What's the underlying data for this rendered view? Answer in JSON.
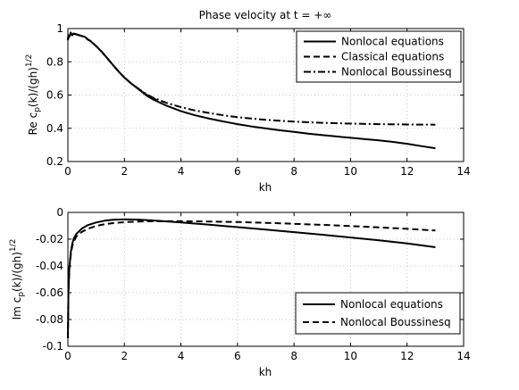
{
  "chart_data": [
    {
      "type": "line",
      "title": "Phase velocity at t = +∞",
      "xlabel": "kh",
      "ylabel": "Re c_p(k)/(gh)^1/2",
      "xlim": [
        0,
        14
      ],
      "ylim": [
        0.2,
        1.0
      ],
      "xticks": [
        "0",
        "2",
        "4",
        "6",
        "8",
        "10",
        "12",
        "14"
      ],
      "yticks": [
        "0.2",
        "0.4",
        "0.6",
        "0.8",
        "1"
      ],
      "grid": true,
      "legend": "top-right",
      "series": [
        {
          "name": "Nonlocal equations",
          "style": "solid",
          "x": [
            0.0,
            0.02,
            0.05,
            0.1,
            0.15,
            0.2,
            0.3,
            0.4,
            0.5,
            0.6,
            0.7,
            0.8,
            1.0,
            1.2,
            1.4,
            1.6,
            1.8,
            2.0,
            2.2,
            2.5,
            2.8,
            3.0,
            3.5,
            4.0,
            4.5,
            5.0,
            5.5,
            6.0,
            6.5,
            7.0,
            7.5,
            8.0,
            8.5,
            9.0,
            9.5,
            10.0,
            10.5,
            11.0,
            11.5,
            12.0,
            12.5,
            13.0
          ],
          "y": [
            0.93,
            0.96,
            0.95,
            0.975,
            0.96,
            0.97,
            0.965,
            0.96,
            0.955,
            0.95,
            0.935,
            0.925,
            0.895,
            0.86,
            0.82,
            0.78,
            0.74,
            0.705,
            0.675,
            0.635,
            0.595,
            0.575,
            0.535,
            0.503,
            0.478,
            0.458,
            0.441,
            0.425,
            0.411,
            0.399,
            0.388,
            0.378,
            0.368,
            0.359,
            0.351,
            0.343,
            0.335,
            0.327,
            0.318,
            0.307,
            0.293,
            0.28
          ]
        },
        {
          "name": "Classical equations",
          "style": "dashed",
          "x": [
            0.0,
            0.02,
            0.05,
            0.1,
            0.15,
            0.2,
            0.3,
            0.4,
            0.5,
            0.6,
            0.7,
            0.8,
            1.0,
            1.2,
            1.4,
            1.6,
            1.8,
            2.0,
            2.2,
            2.5,
            2.8,
            3.0,
            3.2
          ],
          "y": [
            0.93,
            0.96,
            0.95,
            0.975,
            0.96,
            0.97,
            0.965,
            0.96,
            0.955,
            0.95,
            0.935,
            0.925,
            0.895,
            0.86,
            0.82,
            0.78,
            0.74,
            0.705,
            0.675,
            0.637,
            0.6,
            0.582,
            0.566
          ]
        },
        {
          "name": "Nonlocal Boussinesq",
          "style": "dashdot",
          "x": [
            0.0,
            0.02,
            0.05,
            0.1,
            0.15,
            0.2,
            0.3,
            0.4,
            0.5,
            0.6,
            0.7,
            0.8,
            1.0,
            1.2,
            1.4,
            1.6,
            1.8,
            2.0,
            2.2,
            2.5,
            2.8,
            3.0,
            3.5,
            4.0,
            4.5,
            5.0,
            5.5,
            6.0,
            7.0,
            8.0,
            9.0,
            10.0,
            11.0,
            12.0,
            13.0
          ],
          "y": [
            0.93,
            0.96,
            0.95,
            0.975,
            0.96,
            0.97,
            0.965,
            0.96,
            0.955,
            0.95,
            0.935,
            0.925,
            0.895,
            0.86,
            0.82,
            0.78,
            0.74,
            0.705,
            0.675,
            0.637,
            0.603,
            0.585,
            0.552,
            0.527,
            0.507,
            0.492,
            0.478,
            0.467,
            0.451,
            0.44,
            0.433,
            0.428,
            0.425,
            0.423,
            0.422
          ]
        }
      ]
    },
    {
      "type": "line",
      "xlabel": "kh",
      "ylabel": "Im c_p(k)/(gh)^1/2",
      "xlim": [
        0,
        14
      ],
      "ylim": [
        -0.1,
        0.0
      ],
      "xticks": [
        "0",
        "2",
        "4",
        "6",
        "8",
        "10",
        "12",
        "14"
      ],
      "yticks": [
        "-0.1",
        "-0.08",
        "-0.06",
        "-0.04",
        "-0.02",
        "0"
      ],
      "grid": true,
      "legend": "bottom-right",
      "series": [
        {
          "name": "Nonlocal equations",
          "style": "solid",
          "x": [
            0.0,
            0.02,
            0.05,
            0.1,
            0.15,
            0.2,
            0.3,
            0.4,
            0.5,
            0.7,
            1.0,
            1.3,
            1.6,
            2.0,
            2.5,
            3.0,
            4.0,
            5.0,
            6.0,
            7.0,
            8.0,
            9.0,
            10.0,
            11.0,
            12.0,
            13.0
          ],
          "y": [
            -0.094,
            -0.06,
            -0.042,
            -0.03,
            -0.024,
            -0.02,
            -0.016,
            -0.014,
            -0.012,
            -0.0095,
            -0.0075,
            -0.0062,
            -0.0055,
            -0.0052,
            -0.0054,
            -0.006,
            -0.0075,
            -0.0092,
            -0.011,
            -0.0128,
            -0.0147,
            -0.0167,
            -0.0187,
            -0.0208,
            -0.0232,
            -0.026
          ]
        },
        {
          "name": "Nonlocal Boussinesq",
          "style": "dashed",
          "x": [
            0.0,
            0.02,
            0.05,
            0.1,
            0.15,
            0.2,
            0.3,
            0.4,
            0.5,
            0.7,
            1.0,
            1.3,
            1.6,
            2.0,
            2.5,
            3.0,
            4.0,
            5.0,
            6.0,
            7.0,
            8.0,
            9.0,
            10.0,
            11.0,
            12.0,
            13.0
          ],
          "y": [
            -0.094,
            -0.06,
            -0.042,
            -0.032,
            -0.026,
            -0.022,
            -0.018,
            -0.016,
            -0.0145,
            -0.0122,
            -0.0102,
            -0.0088,
            -0.008,
            -0.0073,
            -0.0068,
            -0.0066,
            -0.0066,
            -0.0068,
            -0.0072,
            -0.0078,
            -0.0085,
            -0.0093,
            -0.0102,
            -0.0112,
            -0.0123,
            -0.0135
          ]
        }
      ]
    }
  ]
}
